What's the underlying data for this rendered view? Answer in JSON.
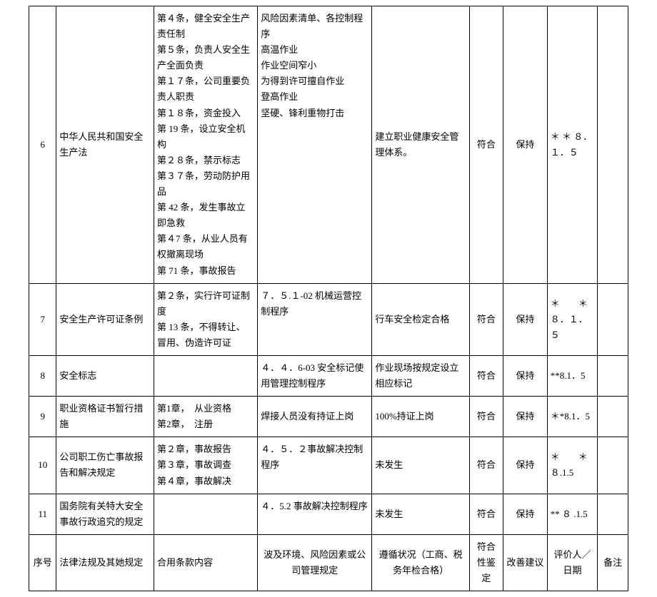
{
  "rows": [
    {
      "num": "6",
      "name": "中华人民共和国安全生产法",
      "clause": "第４条，健全安全生产责任制\n第５条，负责人安全生产全面负责\n第１７条，公司重要负责人职责\n第１８条，资金投入\n第 19 条，设立安全机构\n第２８条，禁示标志\n第３７条，劳动防护用品\n第 42 条，发生事故立即急救\n第４7 条，从业人员有权撤离现场\n第 71 条，事故报告",
      "risk": "风险因素清单、各控制程序\n高温作业\n作业空间窄小\n为得到许可擅自作业\n登高作业\n坚硬、锋利重物打击",
      "risk_valign": "top",
      "compliance": "建立职业健康安全管理体系。",
      "conform": "符合",
      "suggest": "保持",
      "eval": "＊ ＊ ８．１．５"
    },
    {
      "num": "7",
      "name": "安全生产许可证条例",
      "clause": "第２条，实行许可证制度\n第 13 条，不得转让、冒用、伪造许可证",
      "risk": "７．５.１-02 机械运营控制程序",
      "risk_valign": "top",
      "compliance": "行车安全检定合格",
      "conform": "符合",
      "suggest": "保持",
      "eval": "＊　　＊８．１．５"
    },
    {
      "num": "8",
      "name": "安全标志",
      "clause": "",
      "risk": "４．４．6-03 安全标记使用管理控制程序",
      "compliance": "作业现场按规定设立相应标记",
      "conform": "符合",
      "suggest": "保持",
      "eval": "**8.1．5"
    },
    {
      "num": "9",
      "name": "职业资格证书暂行措施",
      "clause": "第1章，　从业资格\n第2章，　注册",
      "risk": "焊接人员没有持证上岗",
      "compliance": "100%持证上岗",
      "conform": "符合",
      "suggest": "保持",
      "eval": "＊*8.1．5"
    },
    {
      "num": "10",
      "name": "公司职工伤亡事故报告和解决规定",
      "clause": "第２章，事故报告\n第３章，事故调查\n第４章，事故解决",
      "risk": "４．５．２事故解决控制程序",
      "risk_valign": "top",
      "compliance": "未发生",
      "conform": "符合",
      "suggest": "保持",
      "eval": "＊　　＊８.1.5"
    },
    {
      "num": "11",
      "name": "国务院有关特大安全事故行政追究的规定",
      "clause": "",
      "risk": "４．5.2 事故解决控制程序",
      "risk_valign": "top",
      "compliance": "未发生",
      "conform": "符合",
      "suggest": "保持",
      "eval": "** ８ .1.5"
    }
  ],
  "header": {
    "num": "序号",
    "name": "法律法规及其她规定",
    "clause": "合用条款内容",
    "risk": "波及环境、风险因素或公司管理规定",
    "compliance": "遵循状况（工商、税务年检合格）",
    "conform": "符合性鉴定",
    "suggest": "改善建议",
    "eval": "评价人／日期",
    "remark": "备注"
  }
}
